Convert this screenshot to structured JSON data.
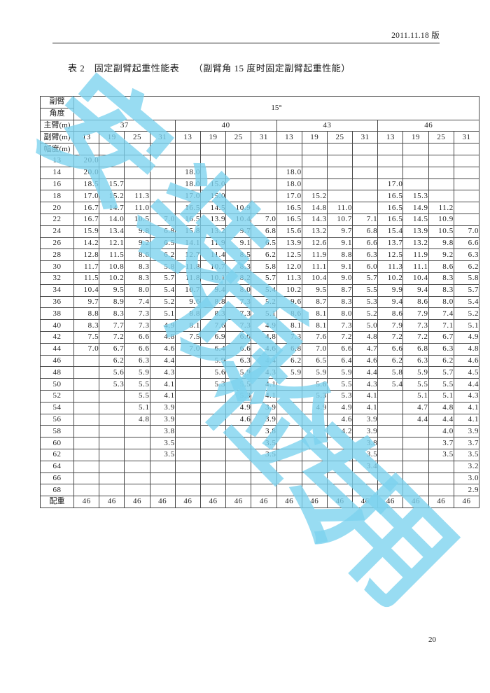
{
  "page": {
    "version_label": "2011.11.18 版",
    "title": "表 2　固定副臂起重性能表　　（副臂角 15 度时固定副臂起重性能）",
    "page_number": "20"
  },
  "watermark": {
    "color": "#7cd3ef",
    "opacity": 0.78,
    "glyphs": [
      "安",
      "装",
      "质",
      "检",
      "专",
      "用"
    ]
  },
  "table": {
    "corner_labels": [
      "副臂",
      "角度"
    ],
    "angle_value": "15°",
    "main_boom_label": "主臂(m)",
    "jib_label": "副臂(m)",
    "radius_label": "幅度(m)",
    "counterweight_label": "配重",
    "main_booms": [
      "37",
      "40",
      "43",
      "46"
    ],
    "jib_lengths": [
      "13",
      "19",
      "25",
      "31",
      "13",
      "19",
      "25",
      "31",
      "13",
      "19",
      "25",
      "31",
      "13",
      "19",
      "25",
      "31"
    ],
    "rows": [
      {
        "radius": "13",
        "values": [
          "20.0",
          "",
          "",
          "",
          "",
          "",
          "",
          "",
          "",
          "",
          "",
          "",
          "",
          "",
          "",
          ""
        ]
      },
      {
        "radius": "14",
        "values": [
          "20.0",
          "",
          "",
          "",
          "18.0",
          "",
          "",
          "",
          "18.0",
          "",
          "",
          "",
          "",
          "",
          "",
          ""
        ]
      },
      {
        "radius": "16",
        "values": [
          "18.5",
          "15.7",
          "",
          "",
          "18.0",
          "15.0",
          "",
          "",
          "18.0",
          "",
          "",
          "",
          "17.0",
          "",
          "",
          ""
        ]
      },
      {
        "radius": "18",
        "values": [
          "17.0",
          "15.2",
          "11.3",
          "",
          "17.0",
          "15.0",
          "",
          "",
          "17.0",
          "15.2",
          "",
          "",
          "16.5",
          "15.3",
          "",
          ""
        ]
      },
      {
        "radius": "20",
        "values": [
          "16.7",
          "14.7",
          "11.0",
          "",
          "16.5",
          "14.5",
          "10.9",
          "",
          "16.5",
          "14.8",
          "11.0",
          "",
          "16.5",
          "14.9",
          "11.2",
          ""
        ]
      },
      {
        "radius": "22",
        "values": [
          "16.7",
          "14.0",
          "10.5",
          "7.0",
          "16.5",
          "13.9",
          "10.4",
          "7.0",
          "16.5",
          "14.3",
          "10.7",
          "7.1",
          "16.5",
          "14.5",
          "10.9",
          ""
        ]
      },
      {
        "radius": "24",
        "values": [
          "15.9",
          "13.4",
          "9.8",
          "6.8",
          "15.8",
          "13.2",
          "9.7",
          "6.8",
          "15.6",
          "13.2",
          "9.7",
          "6.8",
          "15.4",
          "13.9",
          "10.5",
          "7.0"
        ]
      },
      {
        "radius": "26",
        "values": [
          "14.2",
          "12.1",
          "9.2",
          "6.5",
          "14.1",
          "11.9",
          "9.1",
          "6.5",
          "13.9",
          "12.6",
          "9.1",
          "6.6",
          "13.7",
          "13.2",
          "9.8",
          "6.6"
        ]
      },
      {
        "radius": "28",
        "values": [
          "12.8",
          "11.5",
          "8.6",
          "6.2",
          "12.7",
          "11.4",
          "8.5",
          "6.2",
          "12.5",
          "11.9",
          "8.8",
          "6.3",
          "12.5",
          "11.9",
          "9.2",
          "6.3"
        ]
      },
      {
        "radius": "30",
        "values": [
          "11.7",
          "10.8",
          "8.3",
          "5.8",
          "11.8",
          "10.7",
          "8.3",
          "5.8",
          "12.0",
          "11.1",
          "9.1",
          "6.0",
          "11.3",
          "11.1",
          "8.6",
          "6.2"
        ]
      },
      {
        "radius": "32",
        "values": [
          "11.5",
          "10.2",
          "8.3",
          "5.7",
          "11.8",
          "10.1",
          "8.2",
          "5.7",
          "11.3",
          "10.4",
          "9.0",
          "5.7",
          "10.2",
          "10.4",
          "8.3",
          "5.8"
        ]
      },
      {
        "radius": "34",
        "values": [
          "10.4",
          "9.5",
          "8.0",
          "5.4",
          "10.7",
          "9.4",
          "8.0",
          "5.4",
          "10.2",
          "9.5",
          "8.7",
          "5.5",
          "9.9",
          "9.4",
          "8.3",
          "5.7"
        ]
      },
      {
        "radius": "36",
        "values": [
          "9.7",
          "8.9",
          "7.4",
          "5.2",
          "9.6",
          "8.8",
          "7.3",
          "5.2",
          "9.6",
          "8.7",
          "8.3",
          "5.3",
          "9.4",
          "8.6",
          "8.0",
          "5.4"
        ]
      },
      {
        "radius": "38",
        "values": [
          "8.8",
          "8.3",
          "7.3",
          "5.1",
          "8.8",
          "8.3",
          "7.3",
          "5.1",
          "8.6",
          "8.1",
          "8.0",
          "5.2",
          "8.6",
          "7.9",
          "7.4",
          "5.2"
        ]
      },
      {
        "radius": "40",
        "values": [
          "8.3",
          "7.7",
          "7.3",
          "4.9",
          "8.1",
          "7.6",
          "7.3",
          "4.9",
          "8.1",
          "8.1",
          "7.3",
          "5.0",
          "7.9",
          "7.3",
          "7.1",
          "5.1"
        ]
      },
      {
        "radius": "42",
        "values": [
          "7.5",
          "7.2",
          "6.6",
          "4.8",
          "7.5",
          "6.9",
          "6.6",
          "4.8",
          "7.3",
          "7.6",
          "7.2",
          "4.8",
          "7.2",
          "7.2",
          "6.7",
          "4.9"
        ]
      },
      {
        "radius": "44",
        "values": [
          "7.0",
          "6.7",
          "6.6",
          "4.6",
          "7.0",
          "6.4",
          "6.6",
          "4.6",
          "6.8",
          "7.0",
          "6.6",
          "4.7",
          "6.6",
          "6.8",
          "6.3",
          "4.8"
        ]
      },
      {
        "radius": "46",
        "values": [
          "",
          "6.2",
          "6.3",
          "4.4",
          "",
          "5.9",
          "6.3",
          "4.4",
          "6.2",
          "6.5",
          "6.4",
          "4.6",
          "6.2",
          "6.3",
          "6.2",
          "4.6"
        ]
      },
      {
        "radius": "48",
        "values": [
          "",
          "5.6",
          "5.9",
          "4.3",
          "",
          "5.6",
          "5.9",
          "4.3",
          "5.9",
          "5.9",
          "5.9",
          "4.4",
          "5.8",
          "5.9",
          "5.7",
          "4.5"
        ]
      },
      {
        "radius": "50",
        "values": [
          "",
          "5.3",
          "5.5",
          "4.1",
          "",
          "5.3",
          "5.5",
          "4.1",
          "",
          "5.6",
          "5.5",
          "4.3",
          "5.4",
          "5.5",
          "5.5",
          "4.4"
        ]
      },
      {
        "radius": "52",
        "values": [
          "",
          "",
          "5.5",
          "4.1",
          "",
          "",
          "5.3",
          "4.1",
          "",
          "5.3",
          "5.3",
          "4.1",
          "",
          "5.1",
          "5.1",
          "4.3"
        ]
      },
      {
        "radius": "54",
        "values": [
          "",
          "",
          "5.1",
          "3.9",
          "",
          "",
          "4.9",
          "3.9",
          "",
          "4.9",
          "4.9",
          "4.1",
          "",
          "4.7",
          "4.8",
          "4.1"
        ]
      },
      {
        "radius": "56",
        "values": [
          "",
          "",
          "4.8",
          "3.9",
          "",
          "",
          "4.6",
          "3.9",
          "",
          "",
          "4.6",
          "3.9",
          "",
          "4.4",
          "4.4",
          "4.1"
        ]
      },
      {
        "radius": "58",
        "values": [
          "",
          "",
          "",
          "3.8",
          "",
          "",
          "",
          "3.8",
          "",
          "",
          "4.2",
          "3.9",
          "",
          "",
          "4.0",
          "3.9"
        ]
      },
      {
        "radius": "60",
        "values": [
          "",
          "",
          "",
          "3.5",
          "",
          "",
          "",
          "3.5",
          "",
          "",
          "",
          "3.8",
          "",
          "",
          "3.7",
          "3.7"
        ]
      },
      {
        "radius": "62",
        "values": [
          "",
          "",
          "",
          "3.5",
          "",
          "",
          "",
          "3.5",
          "",
          "",
          "",
          "3.5",
          "",
          "",
          "3.5",
          "3.5"
        ]
      },
      {
        "radius": "64",
        "values": [
          "",
          "",
          "",
          "",
          "",
          "",
          "",
          "",
          "",
          "",
          "",
          "3.4",
          "",
          "",
          "",
          "3.2"
        ]
      },
      {
        "radius": "66",
        "values": [
          "",
          "",
          "",
          "",
          "",
          "",
          "",
          "",
          "",
          "",
          "",
          "",
          "",
          "",
          "",
          "3.0"
        ]
      },
      {
        "radius": "68",
        "values": [
          "",
          "",
          "",
          "",
          "",
          "",
          "",
          "",
          "",
          "",
          "",
          "",
          "",
          "",
          "",
          "2.9"
        ]
      }
    ],
    "counterweight_values": [
      "46",
      "46",
      "46",
      "46",
      "46",
      "46",
      "46",
      "46",
      "46",
      "46",
      "46",
      "46",
      "46",
      "46",
      "46",
      "46"
    ]
  }
}
